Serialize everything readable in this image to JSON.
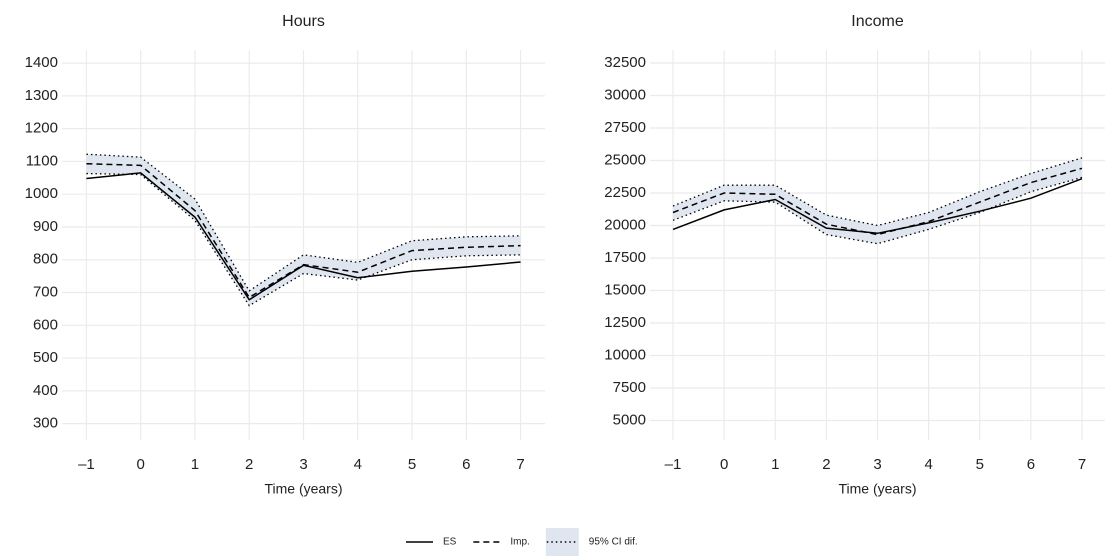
{
  "chart_data": [
    {
      "type": "line",
      "title": "Hours",
      "xlabel": "Time (years)",
      "x": [
        -1,
        0,
        1,
        2,
        3,
        4,
        5,
        6,
        7
      ],
      "xlim": [
        -1.45,
        7.45
      ],
      "xticks": [
        {
          "value": -1,
          "label": "–1"
        },
        0,
        1,
        2,
        3,
        4,
        5,
        6,
        7
      ],
      "ylim": [
        250,
        1440
      ],
      "yticks": [
        300,
        400,
        500,
        600,
        700,
        800,
        900,
        1000,
        1100,
        1200,
        1300,
        1400
      ],
      "grid": true,
      "series": [
        {
          "name": "ES",
          "color": "#000000",
          "style": "solid",
          "values": [
            1048,
            1065,
            930,
            678,
            783,
            745,
            765,
            778,
            793
          ]
        },
        {
          "name": "Imp.",
          "color": "#000000",
          "style": "dashed",
          "values": [
            1093,
            1088,
            950,
            685,
            785,
            762,
            828,
            838,
            843
          ]
        },
        {
          "name": "95% CI dif.",
          "color": "#dfe6f0",
          "style": "dotted",
          "upper": [
            1122,
            1113,
            985,
            705,
            815,
            792,
            858,
            870,
            873
          ],
          "lower": [
            1063,
            1060,
            920,
            660,
            758,
            738,
            800,
            812,
            815
          ]
        }
      ]
    },
    {
      "type": "line",
      "title": "Income",
      "xlabel": "Time (years)",
      "x": [
        -1,
        0,
        1,
        2,
        3,
        4,
        5,
        6,
        7
      ],
      "xlim": [
        -1.45,
        7.45
      ],
      "xticks": [
        {
          "value": -1,
          "label": "–1"
        },
        0,
        1,
        2,
        3,
        4,
        5,
        6,
        7
      ],
      "ylim": [
        3500,
        33500
      ],
      "yticks": [
        5000,
        7500,
        10000,
        12500,
        15000,
        17500,
        20000,
        22500,
        25000,
        27500,
        30000,
        32500
      ],
      "grid": true,
      "series": [
        {
          "name": "ES",
          "color": "#000000",
          "style": "solid",
          "values": [
            19700,
            21200,
            22000,
            19800,
            19400,
            20200,
            21100,
            22100,
            23600
          ]
        },
        {
          "name": "Imp.",
          "color": "#000000",
          "style": "dashed",
          "values": [
            21000,
            22500,
            22400,
            20100,
            19300,
            20300,
            21800,
            23300,
            24400
          ]
        },
        {
          "name": "95% CI dif.",
          "color": "#dfe6f0",
          "style": "dotted",
          "upper": [
            21500,
            23100,
            23100,
            20800,
            20000,
            21000,
            22600,
            24000,
            25200
          ],
          "lower": [
            20400,
            21900,
            21800,
            19300,
            18600,
            19700,
            21000,
            22600,
            23700
          ]
        }
      ]
    }
  ]
}
